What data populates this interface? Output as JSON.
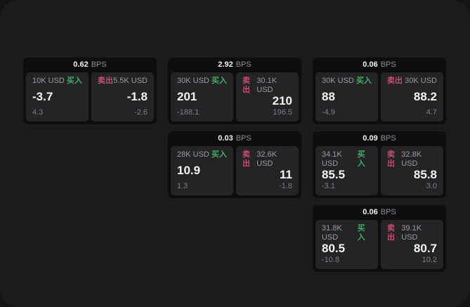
{
  "labels": {
    "buy": "买入",
    "sell": "卖出",
    "bps_unit": "BPS"
  },
  "colors": {
    "buy_accent": "#3fae63",
    "sell_accent": "#c34e6e",
    "surface": "#1b1b1d",
    "tile_bg": "#0e0e10",
    "panel_bg": "#242427"
  },
  "cards": [
    {
      "bps": "0.62",
      "buy": {
        "notional": "10K USD",
        "price": "-3.7",
        "change": "4.3"
      },
      "sell": {
        "notional": "5.5K USD",
        "price": "-1.8",
        "change": "-2.6"
      }
    },
    {
      "bps": "2.92",
      "buy": {
        "notional": "30K USD",
        "price": "201",
        "change": "-188.1"
      },
      "sell": {
        "notional": "30.1K USD",
        "price": "210",
        "change": "196.5"
      }
    },
    {
      "bps": "0.06",
      "buy": {
        "notional": "30K USD",
        "price": "88",
        "change": "-4.9"
      },
      "sell": {
        "notional": "30K USD",
        "price": "88.2",
        "change": "4.7"
      }
    },
    {
      "bps": "0.03",
      "buy": {
        "notional": "28K USD",
        "price": "10.9",
        "change": "1.3"
      },
      "sell": {
        "notional": "32.6K USD",
        "price": "11",
        "change": "-1.8"
      }
    },
    {
      "bps": "0.09",
      "buy": {
        "notional": "34.1K USD",
        "price": "85.5",
        "change": "-3.1"
      },
      "sell": {
        "notional": "32.8K USD",
        "price": "85.8",
        "change": "3.0"
      }
    },
    {
      "bps": "0.06",
      "buy": {
        "notional": "31.8K USD",
        "price": "80.5",
        "change": "-10.8"
      },
      "sell": {
        "notional": "39.1K USD",
        "price": "80.7",
        "change": "10.2"
      }
    }
  ]
}
